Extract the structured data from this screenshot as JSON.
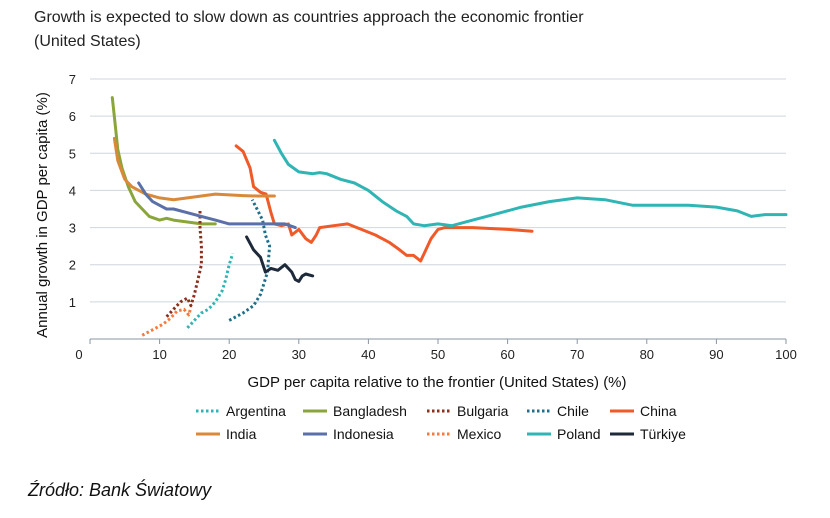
{
  "title_line1": "Growth is expected to slow down as countries approach the economic frontier",
  "title_line2": "(United States)",
  "source": "Źródło: Bank Światowy",
  "chart_data": {
    "type": "line",
    "title": "Growth is expected to slow down as countries approach the economic frontier (United States)",
    "xlabel": "GDP per capita relative to the frontier (United States) (%)",
    "ylabel": "Annual growth in GDP per capita (%)",
    "xlim": [
      0,
      100
    ],
    "ylim": [
      0,
      7
    ],
    "xticks": [
      0,
      10,
      20,
      30,
      40,
      50,
      60,
      70,
      80,
      90,
      100
    ],
    "yticks": [
      1,
      2,
      3,
      4,
      5,
      6,
      7
    ],
    "grid": "horizontal",
    "legend_position": "bottom",
    "series": [
      {
        "name": "Argentina",
        "color": "#2fb5b4",
        "dash": "dotted",
        "points": [
          [
            14,
            0.3
          ],
          [
            15,
            0.5
          ],
          [
            16,
            0.7
          ],
          [
            17,
            0.8
          ],
          [
            18,
            1.0
          ],
          [
            19,
            1.3
          ],
          [
            19.5,
            1.6
          ],
          [
            20,
            2.0
          ],
          [
            20.5,
            2.3
          ]
        ]
      },
      {
        "name": "Bangladesh",
        "color": "#8aa63a",
        "dash": "solid",
        "points": [
          [
            3.2,
            6.5
          ],
          [
            3.6,
            5.8
          ],
          [
            4,
            5.1
          ],
          [
            4.6,
            4.6
          ],
          [
            5.5,
            4.1
          ],
          [
            6.5,
            3.7
          ],
          [
            7.5,
            3.5
          ],
          [
            8.5,
            3.3
          ],
          [
            10,
            3.2
          ],
          [
            11,
            3.25
          ],
          [
            12,
            3.2
          ],
          [
            14,
            3.15
          ],
          [
            16,
            3.1
          ],
          [
            18,
            3.1
          ]
        ]
      },
      {
        "name": "Bulgaria",
        "color": "#8b2f1e",
        "dash": "dotted",
        "points": [
          [
            11,
            0.6
          ],
          [
            12,
            0.8
          ],
          [
            13,
            1.0
          ],
          [
            14,
            1.1
          ],
          [
            14.5,
            0.9
          ],
          [
            15,
            1.2
          ],
          [
            15.5,
            1.6
          ],
          [
            16,
            2.0
          ],
          [
            16,
            2.5
          ],
          [
            15.8,
            3.0
          ],
          [
            15.8,
            3.5
          ]
        ]
      },
      {
        "name": "Chile",
        "color": "#1f6f8b",
        "dash": "dotted",
        "points": [
          [
            20,
            0.5
          ],
          [
            22,
            0.7
          ],
          [
            23.5,
            0.9
          ],
          [
            24.5,
            1.2
          ],
          [
            25.5,
            1.8
          ],
          [
            25.8,
            2.5
          ],
          [
            25.2,
            2.8
          ],
          [
            24.8,
            3.2
          ],
          [
            24,
            3.5
          ],
          [
            23.3,
            3.75
          ]
        ]
      },
      {
        "name": "China",
        "color": "#f05a28",
        "dash": "solid",
        "points": [
          [
            21,
            5.2
          ],
          [
            22,
            5.05
          ],
          [
            23,
            4.6
          ],
          [
            23.5,
            4.1
          ],
          [
            24.5,
            3.95
          ],
          [
            25.3,
            3.9
          ],
          [
            26,
            3.4
          ],
          [
            26.5,
            3.1
          ],
          [
            27.5,
            3.05
          ],
          [
            28.5,
            3.1
          ],
          [
            29,
            2.8
          ],
          [
            30,
            2.95
          ],
          [
            31,
            2.7
          ],
          [
            31.8,
            2.6
          ],
          [
            32.5,
            2.8
          ],
          [
            33,
            3.0
          ],
          [
            35,
            3.05
          ],
          [
            37,
            3.1
          ],
          [
            39,
            2.95
          ],
          [
            41,
            2.8
          ],
          [
            43,
            2.6
          ],
          [
            44.5,
            2.4
          ],
          [
            45.5,
            2.25
          ],
          [
            46.5,
            2.25
          ],
          [
            47.5,
            2.1
          ],
          [
            48,
            2.3
          ],
          [
            49,
            2.7
          ],
          [
            50,
            2.95
          ],
          [
            51,
            3.0
          ],
          [
            55,
            3.0
          ],
          [
            60,
            2.95
          ],
          [
            63.5,
            2.9
          ]
        ]
      },
      {
        "name": "India",
        "color": "#d9893a",
        "dash": "solid",
        "points": [
          [
            3.5,
            5.4
          ],
          [
            4,
            4.8
          ],
          [
            5,
            4.3
          ],
          [
            6,
            4.1
          ],
          [
            8,
            3.9
          ],
          [
            10,
            3.8
          ],
          [
            12,
            3.75
          ],
          [
            14,
            3.8
          ],
          [
            16,
            3.85
          ],
          [
            18,
            3.9
          ],
          [
            20,
            3.88
          ],
          [
            22,
            3.86
          ],
          [
            24,
            3.85
          ],
          [
            26.5,
            3.85
          ]
        ]
      },
      {
        "name": "Indonesia",
        "color": "#5b6fa8",
        "dash": "solid",
        "points": [
          [
            7,
            4.2
          ],
          [
            8,
            3.9
          ],
          [
            9,
            3.7
          ],
          [
            10,
            3.6
          ],
          [
            11,
            3.5
          ],
          [
            12,
            3.5
          ],
          [
            14,
            3.4
          ],
          [
            16,
            3.3
          ],
          [
            18,
            3.2
          ],
          [
            20,
            3.1
          ],
          [
            22,
            3.1
          ],
          [
            24,
            3.1
          ],
          [
            26,
            3.1
          ],
          [
            28,
            3.1
          ],
          [
            29.5,
            3.0
          ]
        ]
      },
      {
        "name": "Mexico",
        "color": "#f47a3d",
        "dash": "dotted",
        "points": [
          [
            7.5,
            0.1
          ],
          [
            8.5,
            0.2
          ],
          [
            9.5,
            0.3
          ],
          [
            10.5,
            0.4
          ],
          [
            11.5,
            0.55
          ],
          [
            12.5,
            0.75
          ],
          [
            13.5,
            0.8
          ],
          [
            14.2,
            0.65
          ],
          [
            14.5,
            0.85
          ]
        ]
      },
      {
        "name": "Poland",
        "color": "#2fb5b4",
        "dash": "solid",
        "points": [
          [
            26.5,
            5.35
          ],
          [
            27.5,
            5.0
          ],
          [
            28.5,
            4.7
          ],
          [
            30,
            4.5
          ],
          [
            32,
            4.45
          ],
          [
            33,
            4.48
          ],
          [
            34,
            4.45
          ],
          [
            36,
            4.3
          ],
          [
            38,
            4.2
          ],
          [
            40,
            4.0
          ],
          [
            42,
            3.7
          ],
          [
            44,
            3.45
          ],
          [
            45.5,
            3.3
          ],
          [
            46.5,
            3.1
          ],
          [
            48,
            3.05
          ],
          [
            50,
            3.1
          ],
          [
            52,
            3.05
          ],
          [
            55,
            3.2
          ],
          [
            58,
            3.35
          ],
          [
            62,
            3.55
          ],
          [
            66,
            3.7
          ],
          [
            70,
            3.8
          ],
          [
            74,
            3.75
          ],
          [
            78,
            3.6
          ],
          [
            82,
            3.6
          ],
          [
            86,
            3.6
          ],
          [
            90,
            3.55
          ],
          [
            93,
            3.45
          ],
          [
            95,
            3.3
          ],
          [
            97,
            3.35
          ],
          [
            100,
            3.35
          ]
        ]
      },
      {
        "name": "Türkiye",
        "color": "#1e2a3a",
        "dash": "solid",
        "points": [
          [
            22.5,
            2.75
          ],
          [
            23.5,
            2.4
          ],
          [
            24.5,
            2.2
          ],
          [
            25.2,
            1.8
          ],
          [
            26,
            1.9
          ],
          [
            27,
            1.85
          ],
          [
            28,
            2.0
          ],
          [
            29,
            1.8
          ],
          [
            29.5,
            1.6
          ],
          [
            30,
            1.55
          ],
          [
            30.5,
            1.7
          ],
          [
            31,
            1.75
          ],
          [
            32,
            1.7
          ]
        ]
      }
    ]
  }
}
